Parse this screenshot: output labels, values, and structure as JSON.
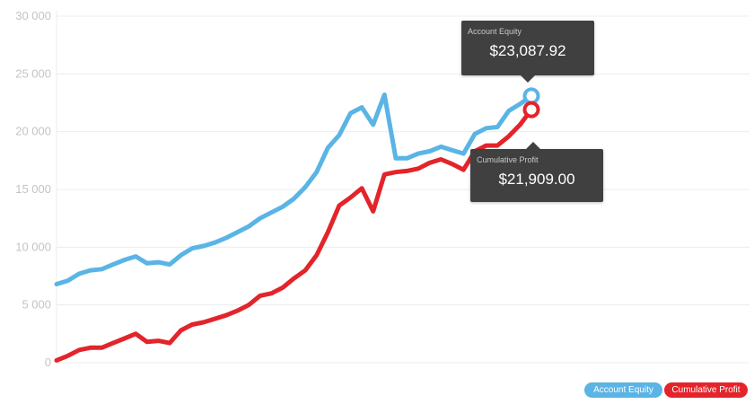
{
  "chart_data": {
    "type": "line",
    "ylim": [
      0,
      30000
    ],
    "y_ticks": [
      0,
      5000,
      10000,
      15000,
      20000,
      25000,
      30000
    ],
    "y_tick_labels": [
      "0",
      "5 000",
      "10 000",
      "15 000",
      "20 000",
      "25 000",
      "30 000"
    ],
    "grid": true,
    "legend_position": "bottom-right",
    "series": [
      {
        "name": "Account Equity",
        "color": "#5ab4e5",
        "values": [
          6800,
          7100,
          7700,
          8000,
          8100,
          8500,
          8900,
          9200,
          8600,
          8700,
          8500,
          9300,
          9900,
          10100,
          10400,
          10800,
          11300,
          11800,
          12500,
          13000,
          13500,
          14200,
          15200,
          16500,
          18600,
          19700,
          21600,
          22100,
          20600,
          23200,
          17700,
          17700,
          18100,
          18300,
          18700,
          18400,
          18100,
          19800,
          20300,
          20400,
          21800,
          22400,
          23087.92
        ]
      },
      {
        "name": "Cumulative Profit",
        "color": "#e3242b",
        "values": [
          200,
          600,
          1100,
          1300,
          1300,
          1700,
          2100,
          2500,
          1800,
          1900,
          1700,
          2800,
          3300,
          3500,
          3800,
          4100,
          4500,
          5000,
          5800,
          6000,
          6500,
          7300,
          8000,
          9300,
          11300,
          13600,
          14300,
          15100,
          13100,
          16300,
          16500,
          16600,
          16800,
          17300,
          17600,
          17200,
          16700,
          18300,
          18800,
          18800,
          19600,
          20600,
          21909.0
        ]
      }
    ],
    "tooltips": [
      {
        "label": "Account Equity",
        "value": "$23,087.92"
      },
      {
        "label": "Cumulative Profit",
        "value": "$21,909.00"
      }
    ]
  },
  "legend": {
    "equity_label": "Account Equity",
    "profit_label": "Cumulative Profit"
  }
}
